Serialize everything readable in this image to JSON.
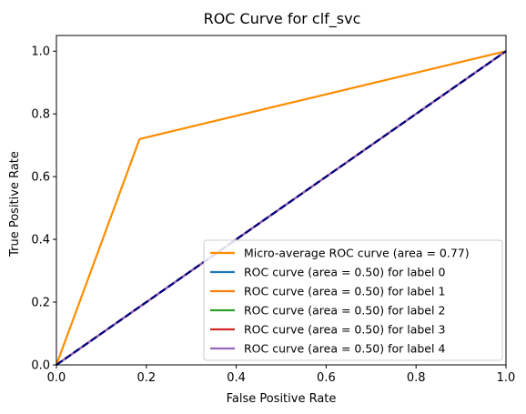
{
  "chart_data": {
    "type": "line",
    "title": "ROC Curve for clf_svc",
    "xlabel": "False Positive Rate",
    "ylabel": "True Positive Rate",
    "xlim": [
      0.0,
      1.0
    ],
    "ylim": [
      0.0,
      1.05
    ],
    "x_ticks": [
      "0.0",
      "0.2",
      "0.4",
      "0.6",
      "0.8",
      "1.0"
    ],
    "y_ticks": [
      "0.0",
      "0.2",
      "0.4",
      "0.6",
      "0.8",
      "1.0"
    ],
    "grid": false,
    "legend_position": "lower-right",
    "series": [
      {
        "name": "Micro-average ROC curve (area = 0.77)",
        "color": "#ff8c00",
        "x": [
          0.0,
          0.185,
          1.0
        ],
        "y": [
          0.0,
          0.72,
          1.0
        ]
      },
      {
        "name": "ROC curve (area = 0.50) for label 0",
        "color": "#1f77b4",
        "x": [
          0.0,
          1.0
        ],
        "y": [
          0.0,
          1.0
        ]
      },
      {
        "name": "ROC curve (area = 0.50) for label 1",
        "color": "#ff7f0e",
        "x": [
          0.0,
          1.0
        ],
        "y": [
          0.0,
          1.0
        ]
      },
      {
        "name": "ROC curve (area = 0.50) for label 2",
        "color": "#2ca02c",
        "x": [
          0.0,
          1.0
        ],
        "y": [
          0.0,
          1.0
        ]
      },
      {
        "name": "ROC curve (area = 0.50) for label 3",
        "color": "#d62728",
        "x": [
          0.0,
          1.0
        ],
        "y": [
          0.0,
          1.0
        ]
      },
      {
        "name": "ROC curve (area = 0.50) for label 4",
        "color": "#9467bd",
        "x": [
          0.0,
          1.0
        ],
        "y": [
          0.0,
          1.0
        ]
      }
    ],
    "reference_line": {
      "color": "#000080",
      "style": "dashed",
      "x": [
        0.0,
        1.0
      ],
      "y": [
        0.0,
        1.0
      ]
    }
  }
}
